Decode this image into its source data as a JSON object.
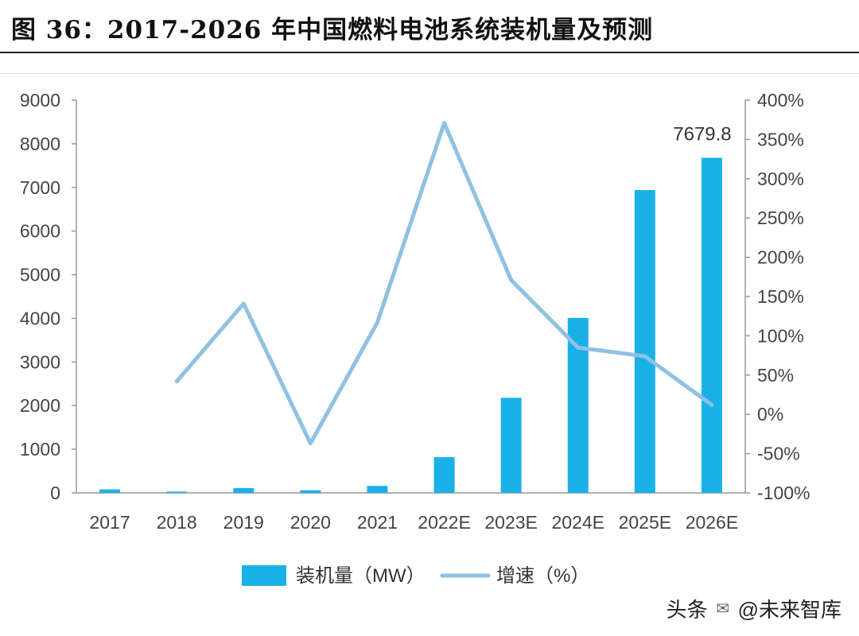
{
  "title": "图 36：2017-2026 年中国燃料电池系统装机量及预测",
  "watermark": {
    "prefix": "头条",
    "handle": "@未来智库",
    "icon": "wechat-icon"
  },
  "colors": {
    "bar": "#1ab1e8",
    "line": "#8fc1e3",
    "axis": "#999999",
    "text": "#444444"
  },
  "chart_data": {
    "type": "bar+line",
    "categories": [
      "2017",
      "2018",
      "2019",
      "2020",
      "2021",
      "2022E",
      "2023E",
      "2024E",
      "2025E",
      "2026E"
    ],
    "series": [
      {
        "name": "装机量（MW）",
        "type": "bar",
        "axis": "left",
        "values": [
          80,
          30,
          110,
          60,
          160,
          820,
          2180,
          4010,
          6940,
          7679.8
        ]
      },
      {
        "name": "增速（%）",
        "type": "line",
        "axis": "right",
        "values": [
          null,
          42,
          141,
          -37,
          117,
          371,
          171,
          85,
          74,
          12
        ]
      }
    ],
    "data_labels": [
      {
        "index": 9,
        "text": "7679.8"
      }
    ],
    "y_left": {
      "min": 0,
      "max": 9000,
      "ticks": [
        "0",
        "1000",
        "2000",
        "3000",
        "4000",
        "5000",
        "6000",
        "7000",
        "8000",
        "9000"
      ]
    },
    "y_right": {
      "min": -100,
      "max": 400,
      "ticks": [
        "-100%",
        "-50%",
        "0%",
        "50%",
        "100%",
        "150%",
        "200%",
        "250%",
        "300%",
        "350%",
        "400%"
      ]
    },
    "legend": {
      "position": "bottom",
      "entries": [
        "装机量（MW）",
        "增速（%）"
      ]
    }
  }
}
